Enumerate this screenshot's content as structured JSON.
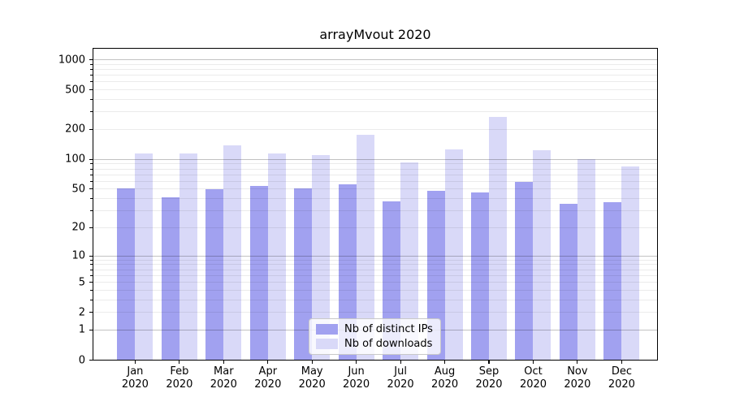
{
  "chart_data": {
    "type": "bar",
    "title": "arrayMvout 2020",
    "categories": [
      "Jan",
      "Feb",
      "Mar",
      "Apr",
      "May",
      "Jun",
      "Jul",
      "Aug",
      "Sep",
      "Oct",
      "Nov",
      "Dec"
    ],
    "x_axis_year": "2020",
    "series": [
      {
        "name": "Nb of distinct IPs",
        "color": "#a1a1f0",
        "values": [
          51,
          42,
          50,
          54,
          51,
          57,
          38,
          49,
          47,
          60,
          36,
          37
        ]
      },
      {
        "name": "Nb of downloads",
        "color": "#d9d9f8",
        "values": [
          115,
          115,
          141,
          115,
          111,
          179,
          95,
          128,
          270,
          126,
          102,
          85
        ]
      }
    ],
    "yscale": "log1p",
    "ytick_values": [
      1000,
      500,
      200,
      100,
      50,
      20,
      10,
      5,
      2,
      1,
      0
    ],
    "ytick_labels": [
      "1000",
      "500",
      "200",
      "100",
      "50",
      "20",
      "10",
      "5",
      "2",
      "1",
      "0"
    ],
    "ylim": [
      0,
      1300
    ],
    "grid": true,
    "legend_position": "lower center",
    "background_color": "#ffffff"
  }
}
